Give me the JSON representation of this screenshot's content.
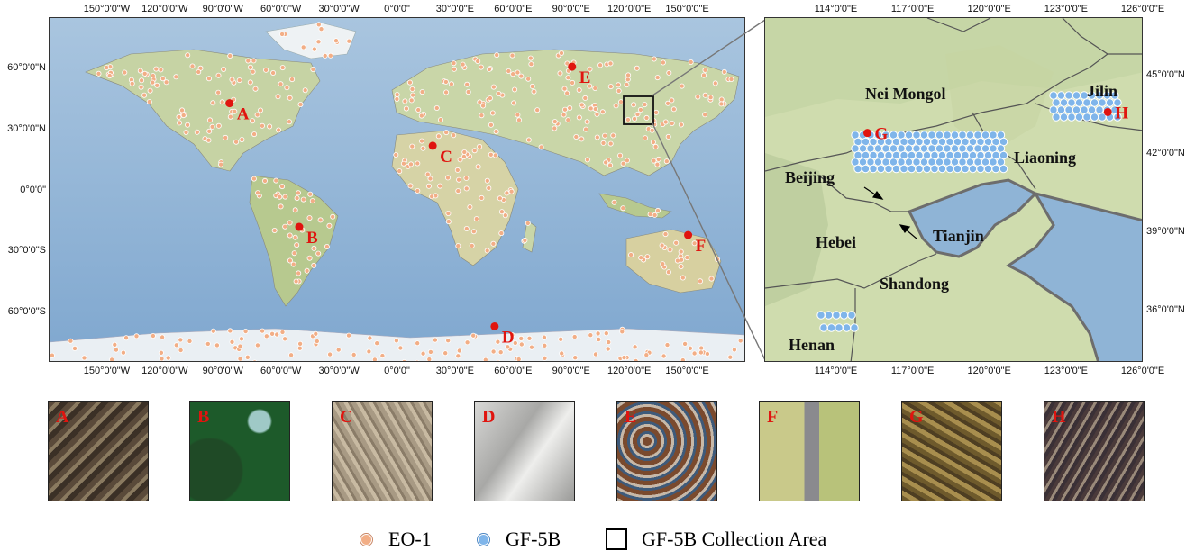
{
  "world_map": {
    "top_lon_ticks": [
      "150°0'0\"W",
      "120°0'0\"W",
      "90°0'0\"W",
      "60°0'0\"W",
      "30°0'0\"W",
      "0°0'0\"",
      "30°0'0\"E",
      "60°0'0\"E",
      "90°0'0\"E",
      "120°0'0\"E",
      "150°0'0\"E"
    ],
    "bottom_lon_ticks": [
      "150°0'0\"W",
      "120°0'0\"W",
      "90°0'0\"W",
      "60°0'0\"W",
      "30°0'0\"W",
      "0°0'0\"",
      "30°0'0\"E",
      "60°0'0\"E",
      "90°0'0\"E",
      "120°0'0\"E",
      "150°0'0\"E"
    ],
    "lat_ticks": [
      "60°0'0\"N",
      "30°0'0\"N",
      "0°0'0\"",
      "30°0'0\"S",
      "60°0'0\"S"
    ],
    "sites": [
      {
        "label": "A",
        "lon": -87,
        "lat": 43
      },
      {
        "label": "B",
        "lon": -51,
        "lat": -18
      },
      {
        "label": "C",
        "lon": 18,
        "lat": 22
      },
      {
        "label": "D",
        "lon": 50,
        "lat": -67
      },
      {
        "label": "E",
        "lon": 90,
        "lat": 61
      },
      {
        "label": "F",
        "lon": 150,
        "lat": -22
      }
    ]
  },
  "inset_map": {
    "top_lon_ticks": [
      "114°0'0\"E",
      "117°0'0\"E",
      "120°0'0\"E",
      "123°0'0\"E",
      "126°0'0\"E"
    ],
    "bottom_lon_ticks": [
      "114°0'0\"E",
      "117°0'0\"E",
      "120°0'0\"E",
      "123°0'0\"E",
      "126°0'0\"E"
    ],
    "lat_ticks": [
      "45°0'0\"N",
      "42°0'0\"N",
      "39°0'0\"N",
      "36°0'0\"N"
    ],
    "regions": {
      "nei_mongol": "Nei Mongol",
      "jilin": "Jilin",
      "liaoning": "Liaoning",
      "beijing": "Beijing",
      "hebei": "Hebei",
      "tianjin": "Tianjin",
      "shandong": "Shandong",
      "henan": "Henan"
    },
    "sites": [
      {
        "label": "G",
        "lon": 115.2,
        "lat": 42.8
      },
      {
        "label": "H",
        "lon": 124.6,
        "lat": 43.6
      }
    ]
  },
  "thumbnails": [
    "A",
    "B",
    "C",
    "D",
    "E",
    "F",
    "G",
    "H"
  ],
  "legend": {
    "eo1": "EO-1",
    "gf5b": "GF-5B",
    "area": "GF-5B Collection Area"
  },
  "colors": {
    "site_marker": "#e0140f",
    "eo1_dot": "#f2ae86",
    "gf5b_dot": "#7fb5ea",
    "ocean": "#8fb4d6",
    "land": "#c9d6a8",
    "ice": "#e8eef2"
  }
}
